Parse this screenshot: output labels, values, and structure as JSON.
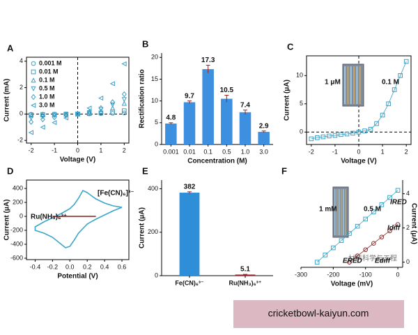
{
  "chart_data": [
    {
      "type": "line",
      "label": "A",
      "xlabel": "Voltage (V)",
      "ylabel": "Current (mA)",
      "xlim": [
        -2.2,
        2.2
      ],
      "ylim": [
        -2.2,
        4.3
      ],
      "xticks": [
        -2,
        -1,
        0,
        1,
        2
      ],
      "yticks": [
        -2,
        0,
        2,
        4
      ],
      "x": [
        -2,
        -1.5,
        -1,
        -0.5,
        0,
        0.5,
        1,
        1.5,
        2
      ],
      "legend": "upper left",
      "zero_lines": true,
      "series": [
        {
          "name": "0.001 M",
          "color": "#3a9fc6",
          "marker": "circle",
          "values": [
            -0.02,
            -0.015,
            -0.01,
            -0.005,
            0,
            0.01,
            0.03,
            0.05,
            0.08
          ]
        },
        {
          "name": "0.01 M",
          "color": "#3a9fc6",
          "marker": "square",
          "values": [
            -0.06,
            -0.04,
            -0.03,
            -0.01,
            0,
            0.03,
            0.08,
            0.15,
            0.25
          ]
        },
        {
          "name": "0.1 M",
          "color": "#3a9fc6",
          "marker": "triangle",
          "values": [
            -0.1,
            -0.07,
            -0.04,
            -0.02,
            0,
            0.06,
            0.2,
            0.45,
            0.8
          ]
        },
        {
          "name": "0.5 M",
          "color": "#3a9fc6",
          "marker": "triangle-down",
          "values": [
            -0.3,
            -0.2,
            -0.12,
            -0.05,
            0,
            0.1,
            0.35,
            0.7,
            1.1
          ]
        },
        {
          "name": "1.0 M",
          "color": "#3a9fc6",
          "marker": "diamond",
          "values": [
            -0.6,
            -0.4,
            -0.25,
            -0.1,
            0,
            0.15,
            0.45,
            0.9,
            1.5
          ]
        },
        {
          "name": "3.0 M",
          "color": "#3a9fc6",
          "marker": "triangle-left",
          "values": [
            -1.4,
            -1.0,
            -0.65,
            -0.3,
            0,
            0.45,
            1.2,
            2.3,
            3.8
          ]
        }
      ]
    },
    {
      "type": "bar",
      "label": "B",
      "xlabel": "Concentration (M)",
      "ylabel": "Rectification ratio",
      "categories": [
        "0.001",
        "0.01",
        "0.1",
        "0.5",
        "1.0",
        "3.0"
      ],
      "values": [
        4.8,
        9.7,
        17.3,
        10.5,
        7.4,
        2.9
      ],
      "errors": [
        0.2,
        0.3,
        0.9,
        0.8,
        0.5,
        0.2
      ],
      "color": "#3d8fe0",
      "ylim": [
        0,
        21
      ],
      "yticks": [
        0,
        5,
        10,
        15,
        20
      ]
    },
    {
      "type": "line",
      "label": "C",
      "xlabel": "Voltage (V)",
      "ylabel": "Current (μA)",
      "xlim": [
        -2.2,
        2.2
      ],
      "ylim": [
        -2.2,
        13.5
      ],
      "xticks": [
        -2,
        -1,
        0,
        1,
        2
      ],
      "yticks": [
        0,
        5,
        10
      ],
      "x": [
        -2,
        -1.75,
        -1.5,
        -1.25,
        -1,
        -0.75,
        -0.5,
        -0.25,
        0,
        0.25,
        0.5,
        0.75,
        1,
        1.25,
        1.5,
        1.75,
        2
      ],
      "zero_lines": true,
      "inset": true,
      "annotations": [
        "1 μM",
        "0.1 M"
      ],
      "series": [
        {
          "color": "#3a9fc6",
          "marker": "square",
          "line": true,
          "values": [
            -1.2,
            -1.0,
            -0.85,
            -0.7,
            -0.6,
            -0.45,
            -0.35,
            -0.2,
            0,
            0.2,
            0.5,
            1.5,
            3,
            5,
            7.5,
            10,
            12.5
          ]
        }
      ]
    },
    {
      "type": "line",
      "label": "D",
      "xlabel": "Potential (V)",
      "ylabel": "Current (μA)",
      "xlim": [
        -0.5,
        0.68
      ],
      "ylim": [
        -620,
        520
      ],
      "xticks": [
        -0.4,
        -0.2,
        {
          "value": 0,
          "label": "0.0"
        },
        0.2,
        0.4,
        0.6
      ],
      "yticks": [
        -600,
        -400,
        -200,
        0,
        200,
        400
      ],
      "series_labels": true,
      "series": [
        {
          "name": "[Fe(CN)₆]³⁻",
          "color": "#3aa6c9",
          "line": true,
          "x": [
            0.6,
            0.5,
            0.4,
            0.3,
            0.2,
            0.1,
            0.05,
            0,
            -0.05,
            -0.1,
            -0.2,
            -0.3,
            -0.4,
            -0.4,
            -0.3,
            -0.2,
            -0.1,
            0,
            0.05,
            0.1,
            0.15,
            0.2,
            0.3,
            0.4,
            0.5,
            0.6
          ],
          "values": [
            130,
            80,
            20,
            -40,
            -110,
            -240,
            -340,
            -430,
            -450,
            -400,
            -300,
            -240,
            -200,
            -150,
            -80,
            -20,
            40,
            110,
            170,
            260,
            370,
            340,
            250,
            190,
            150,
            130
          ]
        },
        {
          "name": "Ru(NH₃)₆³⁺",
          "color": "#8b1a1a",
          "line": true,
          "x": [
            -0.2,
            0.3
          ],
          "values": [
            0,
            0
          ]
        }
      ]
    },
    {
      "type": "bar",
      "label": "E",
      "ylabel": "Current (μA)",
      "categories": [
        "Fe(CN)₆³⁻",
        "Ru(NH₃)₆³⁺"
      ],
      "values": [
        382,
        5.1
      ],
      "errors": [
        4,
        1
      ],
      "colors": [
        "#2e8fd8",
        "#9b2335"
      ],
      "ylim": [
        0,
        440
      ],
      "yticks": [
        0,
        200,
        400
      ]
    },
    {
      "type": "line",
      "label": "F",
      "xlabel": "Voltage (mV)",
      "y2label": "Current (μA)",
      "xlim": [
        -300,
        15
      ],
      "xticks": [
        -300,
        -200,
        -100,
        0
      ],
      "y2lim": [
        -0.3,
        4.8
      ],
      "y2ticks": [
        0,
        2,
        4
      ],
      "inset": true,
      "annotations": [
        "1 mM",
        "0.5 M",
        "IRED",
        "Idiff",
        "ERED",
        "Ediff"
      ],
      "watermark": "材料科学与工程",
      "series": [
        {
          "color": "#3aa6c9",
          "marker": "square",
          "line": true,
          "axis": "y2",
          "x": [
            -250,
            -225,
            -200,
            -175,
            -150,
            -125,
            -100,
            -75,
            -50,
            -25,
            0
          ],
          "values": [
            0,
            0.42,
            0.84,
            1.26,
            1.68,
            2.1,
            2.52,
            2.94,
            3.36,
            3.78,
            4.2
          ]
        },
        {
          "color": "#8b2b2b",
          "marker": "circle",
          "line": true,
          "axis": "y2",
          "x": [
            -150,
            -125,
            -100,
            -75,
            -50,
            -25,
            0
          ],
          "values": [
            0,
            0.37,
            0.73,
            1.1,
            1.47,
            1.83,
            2.2
          ]
        }
      ]
    }
  ],
  "caption": "cricketbowl-kaiyun.com"
}
